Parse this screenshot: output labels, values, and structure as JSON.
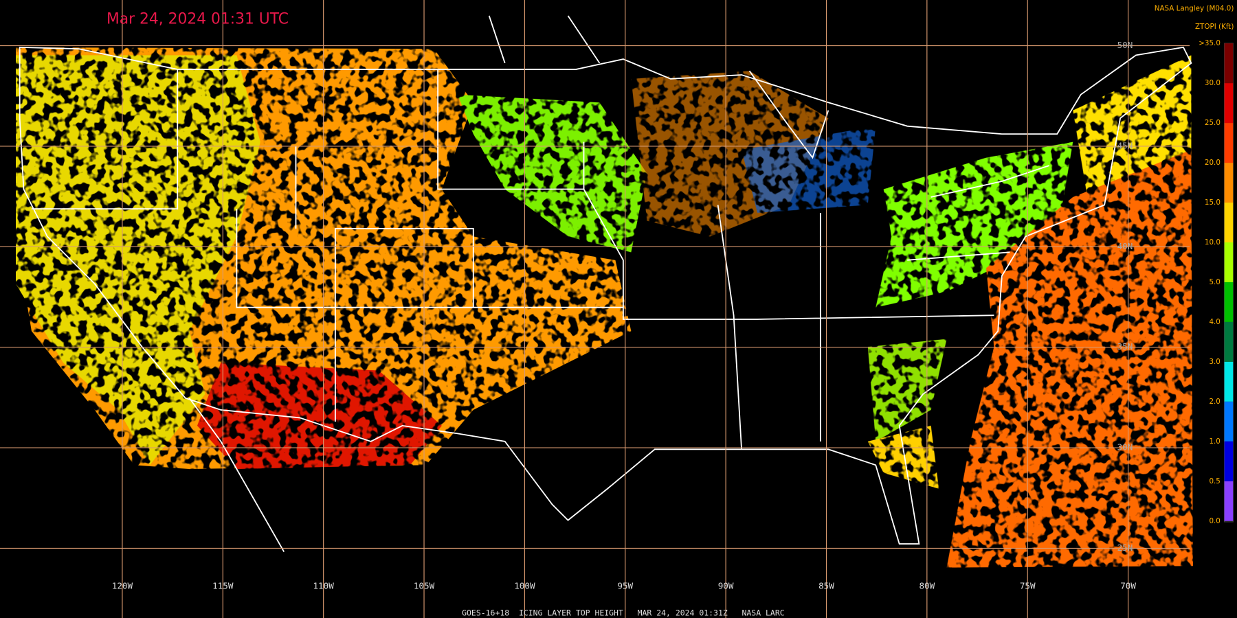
{
  "header": {
    "title": "Mar 24, 2024 01:31 UTC",
    "source": "NASA Langley (M04.0)",
    "units": "ZTOPI (Kft)"
  },
  "longitudes": [
    "120W",
    "115W",
    "110W",
    "105W",
    "100W",
    "95W",
    "90W",
    "85W",
    "80W",
    "75W",
    "70W"
  ],
  "latitudes": [
    "50N",
    "45N",
    "40N",
    "35N",
    "30N",
    "25N"
  ],
  "colorbar": {
    "labels": [
      ">35.0",
      "30.0",
      "25.0",
      "20.0",
      "15.0",
      "10.0",
      "5.0",
      "4.0",
      "3.0",
      "2.0",
      "1.0",
      "0.5",
      "0.0"
    ],
    "colors": [
      "#7a0000",
      "#e00000",
      "#ff3c00",
      "#ff8c00",
      "#ffd400",
      "#a8ff00",
      "#00c000",
      "#007a40",
      "#00e8e8",
      "#0078ff",
      "#0000e0",
      "#8a40ff"
    ]
  },
  "caption": "GOES-16+18  ICING LAYER TOP HEIGHT   MAR 24, 2024 01:31Z   NASA LARC"
}
